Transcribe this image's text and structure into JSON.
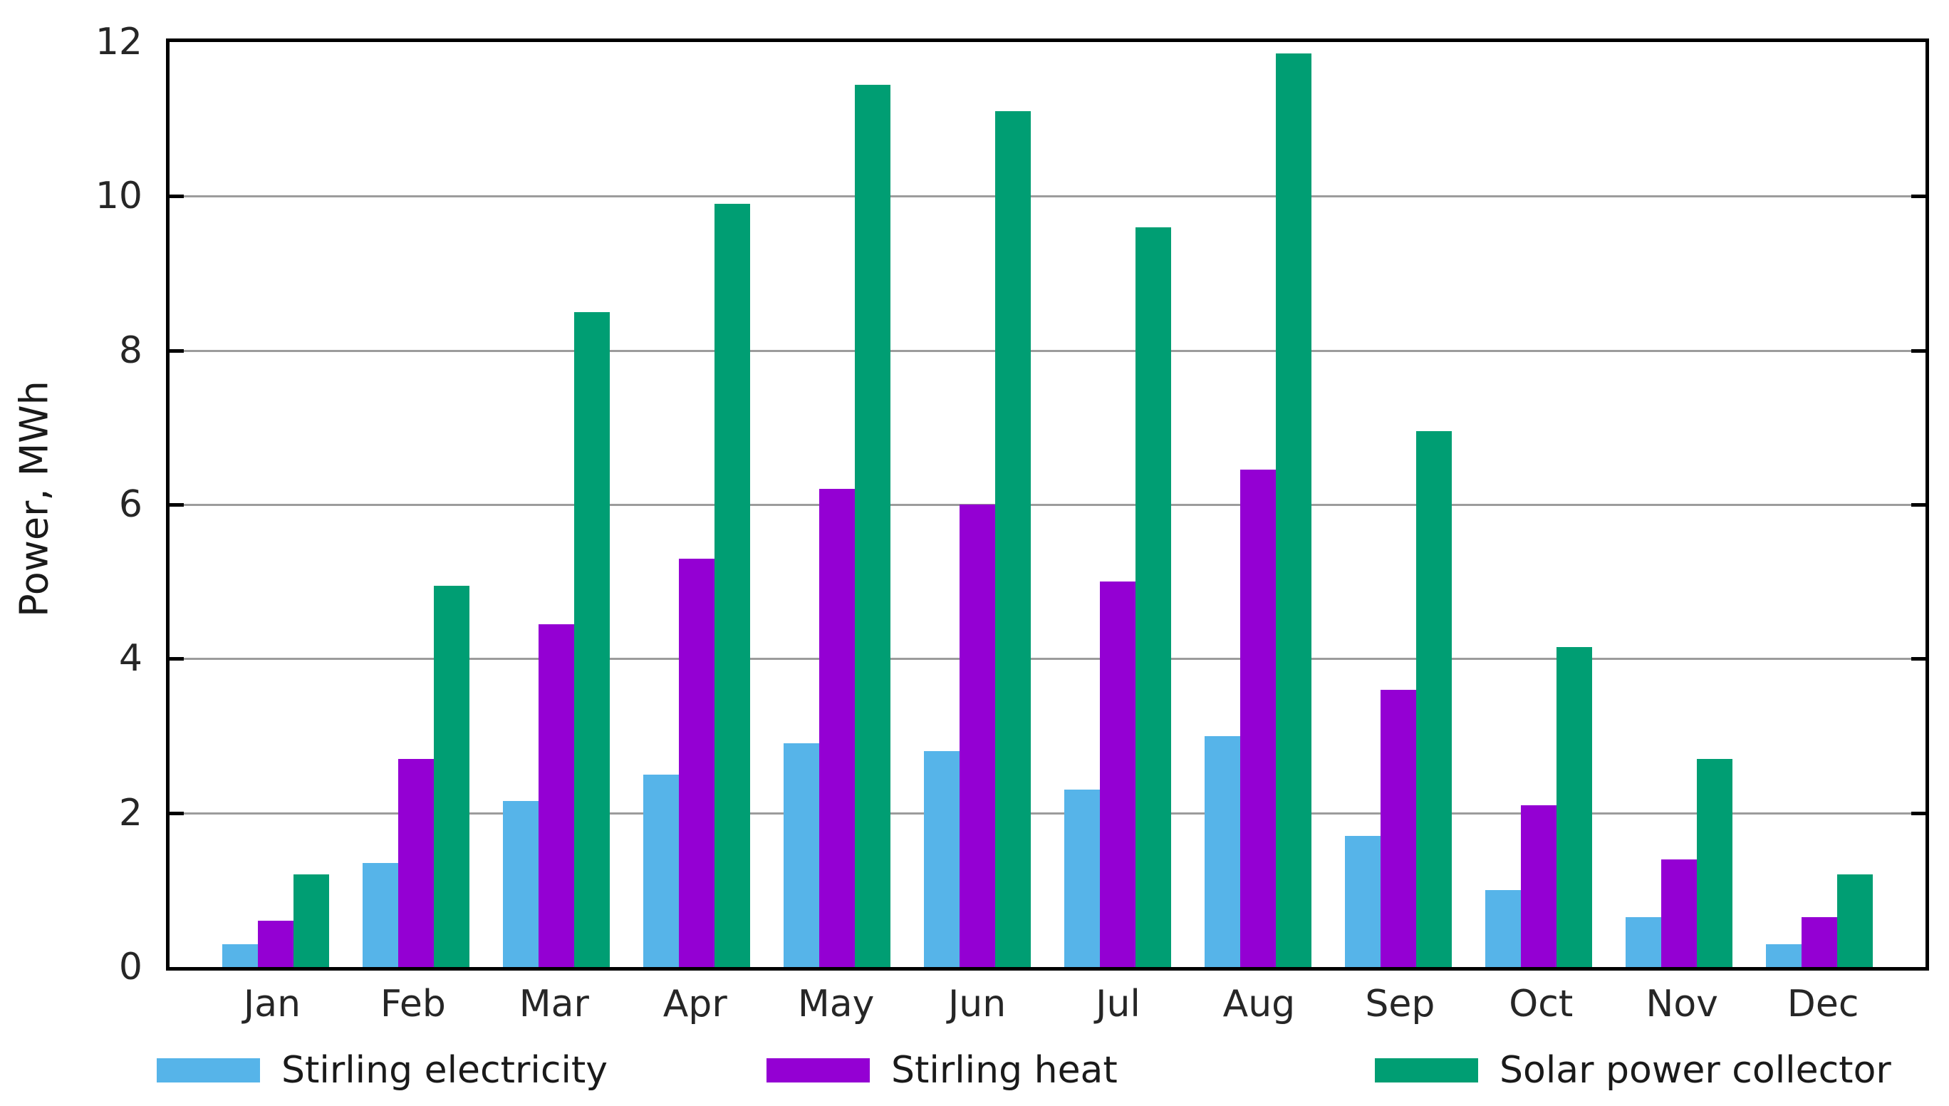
{
  "chart_data": {
    "type": "bar",
    "title": "",
    "xlabel": "",
    "ylabel": "Power, MWh",
    "ylim": [
      0,
      12
    ],
    "yticks": [
      0,
      2,
      4,
      6,
      8,
      10,
      12
    ],
    "grid": true,
    "legend_position": "bottom",
    "categories": [
      "Jan",
      "Feb",
      "Mar",
      "Apr",
      "May",
      "Jun",
      "Jul",
      "Aug",
      "Sep",
      "Oct",
      "Nov",
      "Dec"
    ],
    "series": [
      {
        "name": "Stirling electricity",
        "color": "#56B4E9",
        "values": [
          0.3,
          1.35,
          2.15,
          2.5,
          2.9,
          2.8,
          2.3,
          3.0,
          1.7,
          1.0,
          0.65,
          0.3
        ]
      },
      {
        "name": "Stirling heat",
        "color": "#9400D3",
        "values": [
          0.6,
          2.7,
          4.45,
          5.3,
          6.2,
          6.0,
          5.0,
          6.45,
          3.6,
          2.1,
          1.4,
          0.65
        ]
      },
      {
        "name": "Solar power collector",
        "color": "#009E73",
        "values": [
          1.2,
          4.95,
          8.5,
          9.9,
          11.45,
          11.1,
          9.6,
          11.85,
          6.95,
          4.15,
          2.7,
          1.2
        ]
      }
    ],
    "colors": {
      "grid": "#9c9c9c",
      "frame": "#000000",
      "text": "#262626",
      "background": "#ffffff"
    }
  }
}
